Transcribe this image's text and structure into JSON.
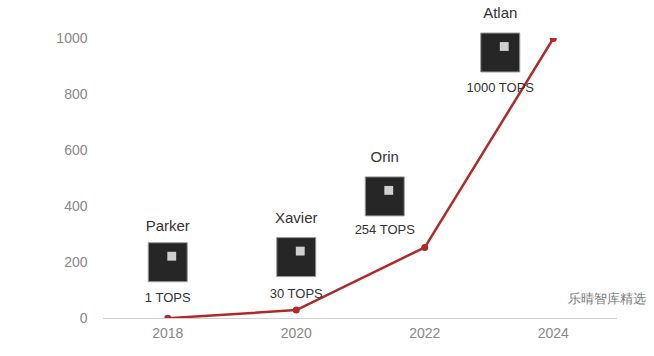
{
  "chart_data": {
    "type": "line",
    "x": [
      2018,
      2020,
      2022,
      2024
    ],
    "values": [
      1,
      30,
      254,
      1000
    ],
    "point_labels": [
      "Parker",
      "Xavier",
      "Orin",
      "Atlan"
    ],
    "value_labels": [
      "1 TOPS",
      "30 TOPS",
      "254 TOPS",
      "1000 TOPS"
    ],
    "data_labels": true,
    "color": "#b02a2a",
    "marker": "circle",
    "xlim": [
      2017,
      2025
    ],
    "xticks": [
      2018,
      2020,
      2022,
      2024
    ],
    "ylim": [
      0,
      1000
    ],
    "yticks": [
      0,
      200,
      400,
      600,
      800,
      1000
    ],
    "grid": false,
    "annotations": [
      "乐晴智库精选"
    ]
  }
}
